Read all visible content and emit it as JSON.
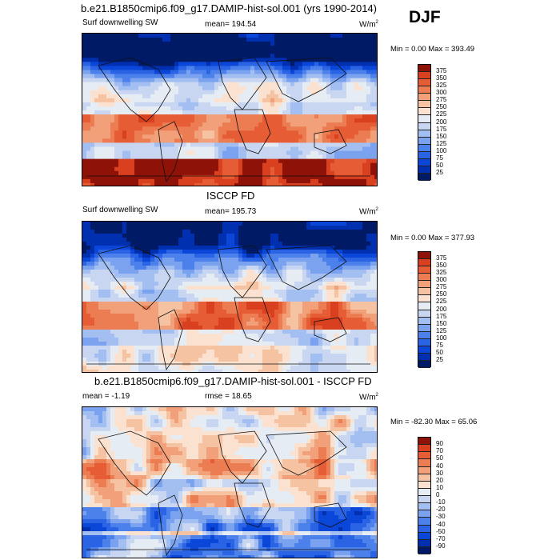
{
  "season": "DJF",
  "colors": {
    "blues": [
      "#001a66",
      "#0030b0",
      "#0a46d8",
      "#2a64e4",
      "#4c80ea",
      "#7aa2ee",
      "#a3bff2",
      "#c8d6f2",
      "#e6ecf4"
    ],
    "reds": [
      "#fbe2d0",
      "#f6c3a2",
      "#f2a07a",
      "#ec7c52",
      "#e65c34",
      "#d8401f",
      "#bb2a14",
      "#8f1209",
      "#6b0606"
    ]
  },
  "chart_data": [
    {
      "type": "heatmap",
      "title": "b.e21.B1850cmip6.f09_g17.DAMIP-hist-sol.001 (yrs 1990-2014)",
      "variable": "Surf downwelling SW",
      "mean_label": "mean= 194.54",
      "units": "W/m",
      "units_sup": "2",
      "min_max": "Min =   0.00 Max = 393.49",
      "colorbar_ticks": [
        "375",
        "350",
        "325",
        "300",
        "275",
        "250",
        "225",
        "200",
        "175",
        "150",
        "125",
        "100",
        "75",
        "50",
        "25"
      ],
      "mean": 194.54,
      "min": 0.0,
      "max": 393.49
    },
    {
      "type": "heatmap",
      "title": "ISCCP FD",
      "variable": "Surf downwelling SW",
      "mean_label": "mean= 195.73",
      "units": "W/m",
      "units_sup": "2",
      "min_max": "Min =   0.00 Max = 377.93",
      "colorbar_ticks": [
        "375",
        "350",
        "325",
        "300",
        "275",
        "250",
        "225",
        "200",
        "175",
        "150",
        "125",
        "100",
        "75",
        "50",
        "25"
      ],
      "mean": 195.73,
      "min": 0.0,
      "max": 377.93
    },
    {
      "type": "heatmap",
      "title": "b.e21.B1850cmip6.f09_g17.DAMIP-hist-sol.001 - ISCCP FD",
      "mean_label": "mean =  -1.19",
      "rmse_label": "rmse =  18.65",
      "units": "W/m",
      "units_sup": "2",
      "min_max": "Min = -82.30 Max =  65.06",
      "colorbar_ticks": [
        "90",
        "70",
        "50",
        "40",
        "30",
        "20",
        "10",
        "0",
        "-10",
        "-20",
        "-30",
        "-40",
        "-50",
        "-70",
        "-90"
      ],
      "mean": -1.19,
      "rmse": 18.65,
      "min": -82.3,
      "max": 65.06
    }
  ]
}
